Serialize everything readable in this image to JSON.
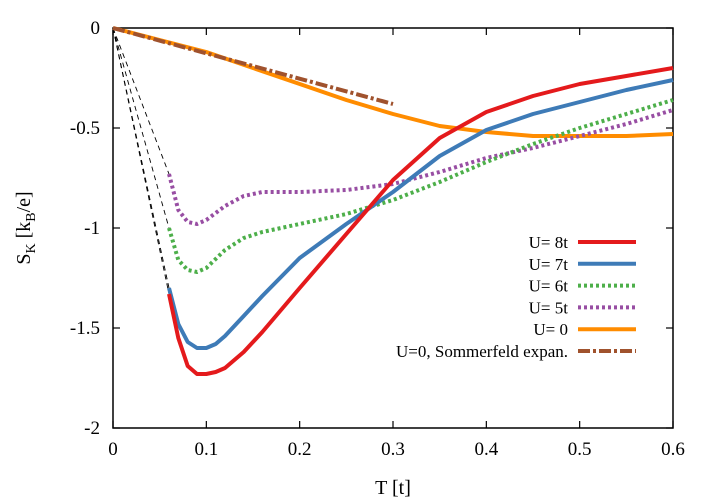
{
  "chart_data": {
    "type": "line",
    "xlabel": "T [t]",
    "ylabel_main": "S",
    "ylabel_sub": "K",
    "ylabel_unit_open": " [k",
    "ylabel_unit_sub": "B",
    "ylabel_unit_close": "/e]",
    "xlim": [
      0,
      0.6
    ],
    "ylim": [
      -2,
      0
    ],
    "xticks": [
      0,
      0.1,
      0.2,
      0.3,
      0.4,
      0.5,
      0.6
    ],
    "xtick_labels": [
      "0",
      "0.1",
      "0.2",
      "0.3",
      "0.4",
      "0.5",
      "0.6"
    ],
    "yticks": [
      0,
      -0.5,
      -1,
      -1.5,
      -2
    ],
    "ytick_labels": [
      "0",
      "-0.5",
      "-1",
      "-1.5",
      "-2"
    ],
    "legend_position": "bottom-right",
    "series": [
      {
        "name": "U= 8t",
        "color": "#e41a1c",
        "style": "solid",
        "x": [
          0.06,
          0.07,
          0.08,
          0.09,
          0.1,
          0.11,
          0.12,
          0.14,
          0.16,
          0.2,
          0.25,
          0.3,
          0.35,
          0.4,
          0.45,
          0.5,
          0.55,
          0.6
        ],
        "y": [
          -1.33,
          -1.55,
          -1.69,
          -1.73,
          -1.73,
          -1.72,
          -1.7,
          -1.62,
          -1.52,
          -1.3,
          -1.03,
          -0.76,
          -0.55,
          -0.42,
          -0.34,
          -0.28,
          -0.24,
          -0.2
        ]
      },
      {
        "name": "U= 7t",
        "color": "#3e7bb7",
        "style": "solid",
        "x": [
          0.06,
          0.07,
          0.08,
          0.09,
          0.1,
          0.11,
          0.12,
          0.14,
          0.16,
          0.2,
          0.25,
          0.3,
          0.35,
          0.4,
          0.45,
          0.5,
          0.55,
          0.6
        ],
        "y": [
          -1.3,
          -1.48,
          -1.57,
          -1.6,
          -1.6,
          -1.58,
          -1.54,
          -1.44,
          -1.34,
          -1.15,
          -0.98,
          -0.82,
          -0.64,
          -0.51,
          -0.43,
          -0.37,
          -0.31,
          -0.26
        ]
      },
      {
        "name": "U= 6t",
        "color": "#4daf4a",
        "style": "dotted",
        "x": [
          0.06,
          0.07,
          0.08,
          0.09,
          0.1,
          0.12,
          0.14,
          0.16,
          0.2,
          0.25,
          0.3,
          0.35,
          0.4,
          0.45,
          0.5,
          0.55,
          0.6
        ],
        "y": [
          -1.0,
          -1.16,
          -1.21,
          -1.22,
          -1.2,
          -1.11,
          -1.05,
          -1.02,
          -0.98,
          -0.93,
          -0.86,
          -0.77,
          -0.67,
          -0.58,
          -0.5,
          -0.43,
          -0.36
        ]
      },
      {
        "name": "U= 5t",
        "color": "#984ea3",
        "style": "dotted",
        "x": [
          0.06,
          0.07,
          0.08,
          0.09,
          0.1,
          0.12,
          0.14,
          0.16,
          0.18,
          0.2,
          0.25,
          0.3,
          0.35,
          0.4,
          0.45,
          0.5,
          0.55,
          0.6
        ],
        "y": [
          -0.73,
          -0.91,
          -0.97,
          -0.98,
          -0.96,
          -0.89,
          -0.84,
          -0.82,
          -0.82,
          -0.82,
          -0.81,
          -0.78,
          -0.72,
          -0.65,
          -0.6,
          -0.54,
          -0.48,
          -0.41
        ]
      },
      {
        "name": "U= 0",
        "color": "#ff8c00",
        "style": "solid",
        "x": [
          0,
          0.05,
          0.1,
          0.15,
          0.2,
          0.25,
          0.3,
          0.35,
          0.4,
          0.45,
          0.5,
          0.55,
          0.6
        ],
        "y": [
          0,
          -0.06,
          -0.12,
          -0.2,
          -0.28,
          -0.36,
          -0.43,
          -0.49,
          -0.52,
          -0.54,
          -0.54,
          -0.54,
          -0.53
        ]
      },
      {
        "name": "U=0, Sommerfeld expan.",
        "color": "#a0522d",
        "style": "dashdot",
        "x": [
          0,
          0.3
        ],
        "y": [
          0,
          -0.38
        ]
      }
    ],
    "guide_lines": [
      {
        "x": [
          0,
          0.06
        ],
        "y": [
          0,
          -1.33
        ]
      },
      {
        "x": [
          0,
          0.06
        ],
        "y": [
          0,
          -1.3
        ]
      },
      {
        "x": [
          0,
          0.06
        ],
        "y": [
          0,
          -1.0
        ]
      },
      {
        "x": [
          0,
          0.06
        ],
        "y": [
          0,
          -0.73
        ]
      }
    ]
  }
}
